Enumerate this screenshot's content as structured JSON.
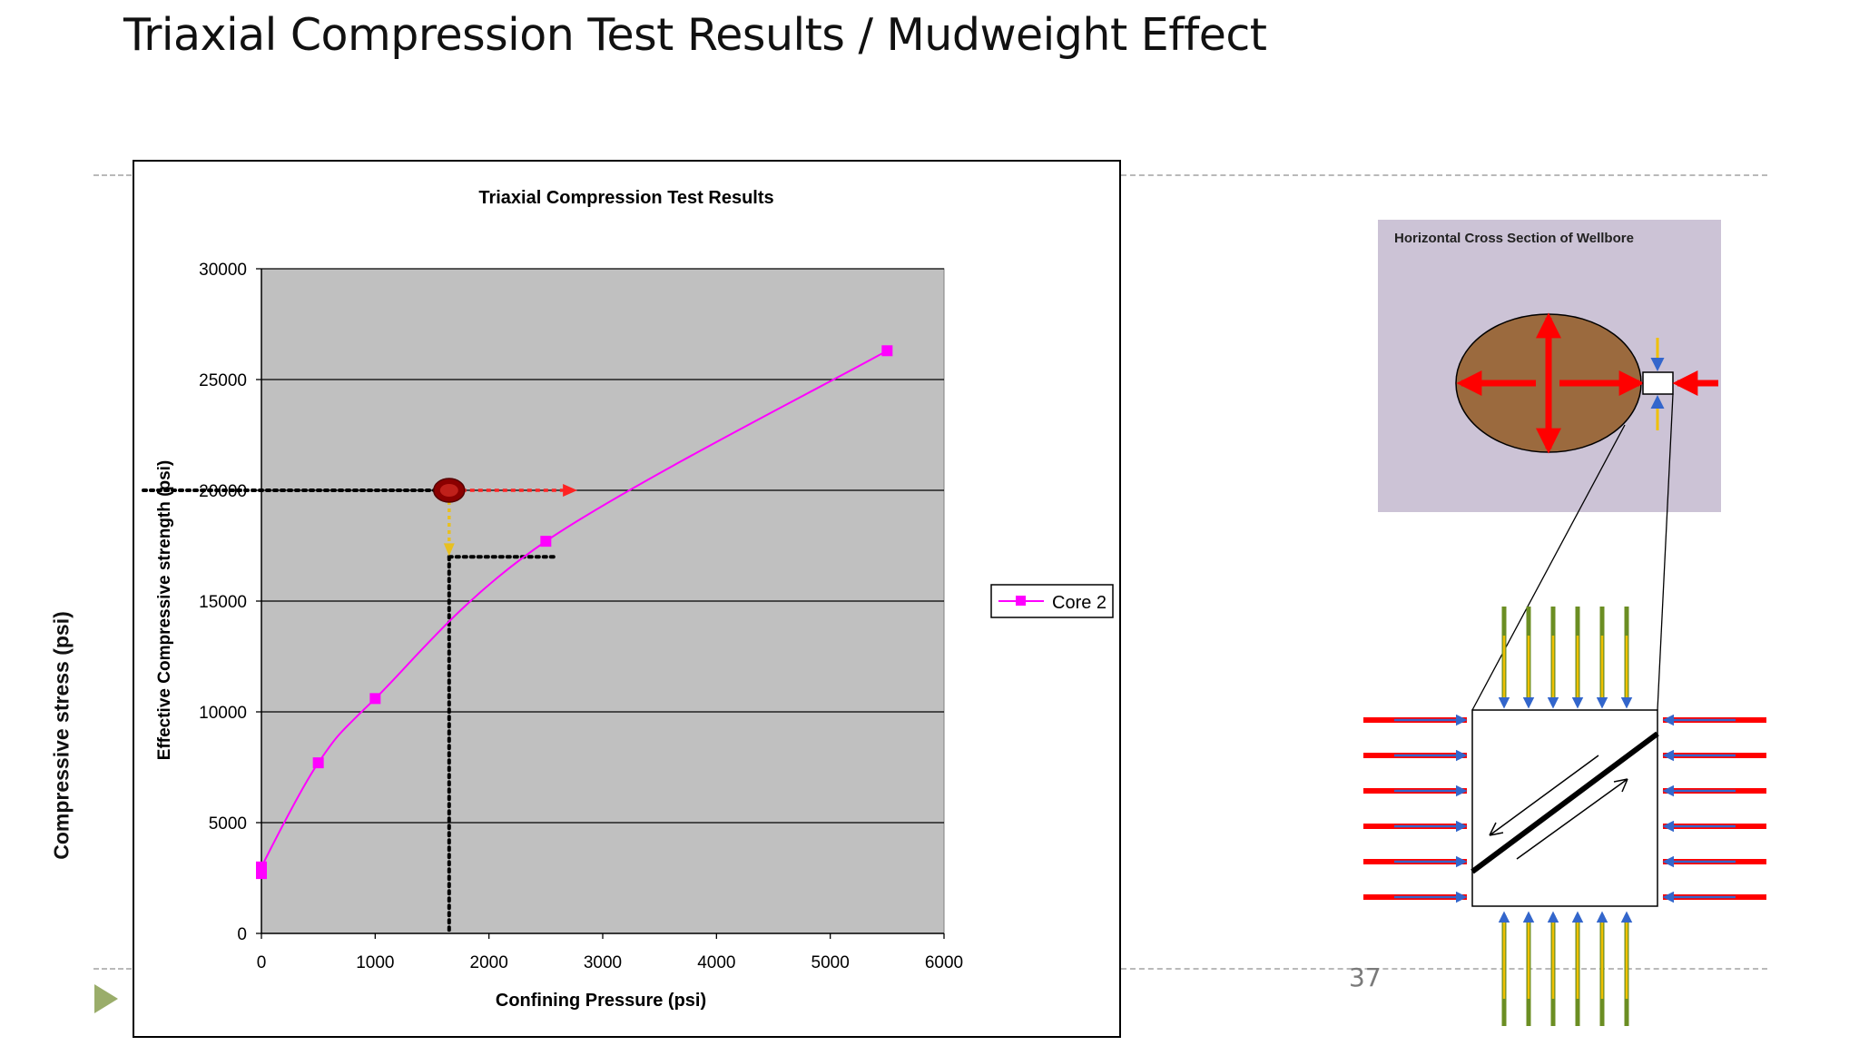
{
  "slide": {
    "title": "Triaxial Compression Test Results / Mudweight Effect",
    "side_ylabel": "Compressive stress (psi)",
    "page_number": "37",
    "nav_icon": "play-triangle-icon"
  },
  "chart_data": {
    "type": "line",
    "title": "Triaxial Compression Test Results",
    "xlabel": "Confining Pressure (psi)",
    "ylabel": "Effective Compressive strength (psi)",
    "xlim": [
      0,
      6000
    ],
    "ylim": [
      0,
      30000
    ],
    "x_ticks": [
      "0",
      "1000",
      "2000",
      "3000",
      "4000",
      "5000",
      "6000"
    ],
    "y_ticks": [
      "0",
      "5000",
      "10000",
      "15000",
      "20000",
      "25000",
      "30000"
    ],
    "grid": "horizontal",
    "legend": "right",
    "series": [
      {
        "name": "Core 2",
        "marker": "square",
        "color": "#ff00ff",
        "x": [
          0,
          0,
          500,
          1000,
          2500,
          5500
        ],
        "y": [
          2700,
          3000,
          7700,
          10600,
          17700,
          26300
        ]
      }
    ],
    "colors": {
      "plot_background": "#c0c0c0",
      "annotation_red": "#ff2222",
      "annotation_yellow": "#e8c020",
      "marker_dark_red": "#8b0000"
    },
    "annotations": {
      "red_ellipse_point": [
        1650,
        20000
      ],
      "dotted_horizontal_high_y": 20000,
      "dotted_horizontal_low_y": 17000,
      "dotted_vertical_x": 1650,
      "red_arrow_to_x": 2650,
      "yellow_arrow_to_y": 17200,
      "low_line_end_x": 2600
    }
  },
  "detail_figure": {
    "inset_title": "Horizontal Cross Section of Wellbore",
    "colors": {
      "inset_background": "#ccc3d6",
      "wellbore_fill": "#9b6a3e",
      "arrow_red": "#ff0000",
      "arrow_blue": "#3366cc",
      "arrow_yellow": "#f0c000",
      "arrow_green": "#6b8e23"
    }
  }
}
